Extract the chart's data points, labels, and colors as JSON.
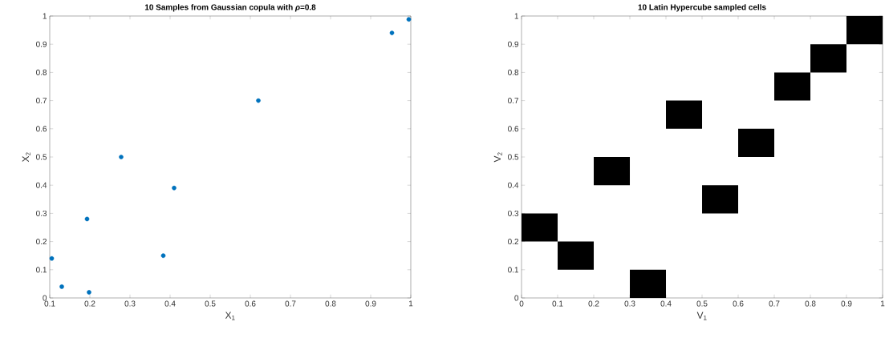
{
  "chart_data": [
    {
      "type": "scatter",
      "title": "10 Samples from Gaussian copula with *ρ*=0.8",
      "xlabel": "X$_{1}$",
      "ylabel": "X$_{2}$",
      "marker": "circle",
      "grid": false,
      "xlim": [
        0.1,
        1
      ],
      "ylim": [
        0,
        1
      ],
      "xticks": [
        0.1,
        0.2,
        0.3,
        0.4,
        0.5,
        0.6,
        0.7,
        0.8,
        0.9,
        1
      ],
      "yticks": [
        0,
        0.1,
        0.2,
        0.3,
        0.4,
        0.5,
        0.6,
        0.7,
        0.8,
        0.9,
        1
      ],
      "series": [
        {
          "color": "#0072bd",
          "x": [
            0.105,
            0.13,
            0.193,
            0.198,
            0.278,
            0.383,
            0.41,
            0.62,
            0.953,
            0.995
          ],
          "values": [
            0.14,
            0.04,
            0.28,
            0.02,
            0.5,
            0.15,
            0.39,
            0.7,
            0.94,
            0.988
          ]
        }
      ]
    },
    {
      "type": "bar",
      "title": "10 Latin Hypercube sampled cells",
      "xlabel": "V$_{1}$",
      "ylabel": "V$_{2}$",
      "grid": false,
      "xlim": [
        0,
        1
      ],
      "ylim": [
        0,
        1
      ],
      "xticks": [
        0,
        0.1,
        0.2,
        0.3,
        0.4,
        0.5,
        0.6,
        0.7,
        0.8,
        0.9,
        1
      ],
      "yticks": [
        0,
        0.1,
        0.2,
        0.3,
        0.4,
        0.5,
        0.6,
        0.7,
        0.8,
        0.9,
        1
      ],
      "series": [
        {
          "color": "#000000",
          "x": [
            0.05,
            0.15,
            0.25,
            0.35,
            0.45,
            0.55,
            0.65,
            0.75,
            0.85,
            0.95
          ],
          "base": [
            0.2,
            0.1,
            0.4,
            0,
            0.6,
            0.3,
            0.5,
            0.7,
            0.8,
            0.9
          ],
          "values": [
            0.1,
            0.1,
            0.1,
            0.1,
            0.1,
            0.1,
            0.1,
            0.1,
            0.1,
            0.1
          ]
        }
      ]
    }
  ]
}
